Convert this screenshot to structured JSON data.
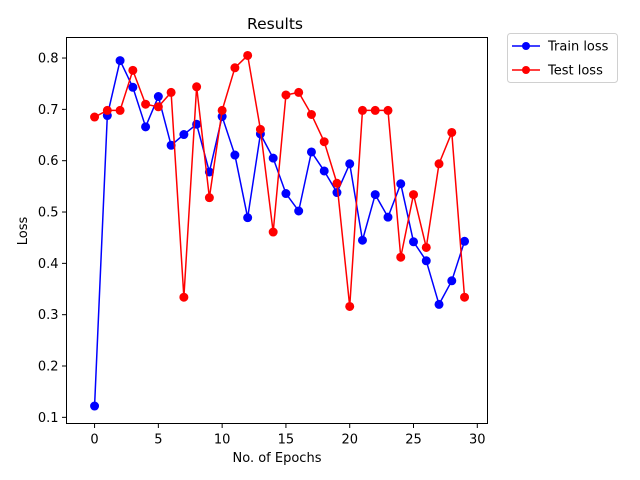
{
  "chart_data": {
    "type": "line",
    "title": "Results",
    "xlabel": "No. of Epochs",
    "ylabel": "Loss",
    "xlim": [
      -2.2,
      30.8
    ],
    "ylim": [
      0.088,
      0.84
    ],
    "xticks": [
      0,
      5,
      10,
      15,
      20,
      25,
      30
    ],
    "yticks": [
      0.1,
      0.2,
      0.3,
      0.4,
      0.5,
      0.6,
      0.7,
      0.8
    ],
    "grid": false,
    "legend_position": "outside-top-right",
    "x": [
      0,
      1,
      2,
      3,
      4,
      5,
      6,
      7,
      8,
      9,
      10,
      11,
      12,
      13,
      14,
      15,
      16,
      17,
      18,
      19,
      20,
      21,
      22,
      23,
      24,
      25,
      26,
      27,
      28,
      29
    ],
    "series": [
      {
        "name": "Train loss",
        "color": "#0000ff",
        "marker": "circle",
        "values": [
          0.122,
          0.688,
          0.795,
          0.743,
          0.666,
          0.725,
          0.63,
          0.651,
          0.671,
          0.578,
          0.686,
          0.611,
          0.489,
          0.652,
          0.605,
          0.536,
          0.502,
          0.617,
          0.58,
          0.538,
          0.594,
          0.445,
          0.534,
          0.49,
          0.555,
          0.442,
          0.405,
          0.32,
          0.366,
          0.443
        ]
      },
      {
        "name": "Test loss",
        "color": "#ff0000",
        "marker": "circle",
        "values": [
          0.685,
          0.698,
          0.698,
          0.776,
          0.71,
          0.705,
          0.733,
          0.334,
          0.744,
          0.528,
          0.698,
          0.781,
          0.805,
          0.661,
          0.461,
          0.728,
          0.733,
          0.69,
          0.637,
          0.556,
          0.316,
          0.698,
          0.698,
          0.698,
          0.412,
          0.534,
          0.431,
          0.594,
          0.655,
          0.334
        ]
      }
    ]
  }
}
